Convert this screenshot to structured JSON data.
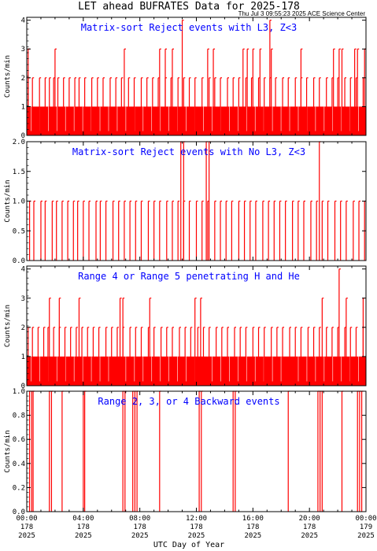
{
  "header": {
    "title": "LET ahead BUFRATES Data for 2025-178",
    "timestamp": "Thu Jul  3 09:55:23 2025 ACE Science Center"
  },
  "xaxis": {
    "label": "UTC Day of Year",
    "ticks": [
      {
        "time": "00:00",
        "doy": "178",
        "year": "2025",
        "hour": 0
      },
      {
        "time": "04:00",
        "doy": "178",
        "year": "2025",
        "hour": 4
      },
      {
        "time": "08:00",
        "doy": "178",
        "year": "2025",
        "hour": 8
      },
      {
        "time": "12:00",
        "doy": "178",
        "year": "2025",
        "hour": 12
      },
      {
        "time": "16:00",
        "doy": "178",
        "year": "2025",
        "hour": 16
      },
      {
        "time": "20:00",
        "doy": "178",
        "year": "2025",
        "hour": 20
      },
      {
        "time": "00:00",
        "doy": "179",
        "year": "2025",
        "hour": 24
      }
    ]
  },
  "colors": {
    "data": "#ff0000",
    "panel_title": "#0000ff",
    "axes": "#000000"
  },
  "chart_data": [
    {
      "type": "line",
      "title": "Matrix-sort Reject events with L3, Z<3",
      "ylabel": "Counts/min",
      "ylim": [
        0,
        4.1
      ],
      "yticks": [
        "0",
        "1",
        "2",
        "3",
        "4"
      ],
      "xlim_hours": [
        0,
        24
      ],
      "series": [
        {
          "baseline_fill": [
            0,
            1
          ],
          "spikes_2": [
            0.1,
            0.4,
            0.9,
            1.3,
            1.6,
            1.9,
            2.2,
            2.6,
            3.0,
            3.4,
            3.7,
            4.1,
            4.6,
            5.0,
            5.4,
            5.9,
            6.3,
            6.7,
            7.2,
            7.6,
            8.1,
            8.5,
            8.9,
            9.3,
            9.8,
            10.2,
            10.7,
            11.1,
            11.5,
            11.9,
            12.4,
            12.9,
            13.3,
            13.7,
            14.2,
            14.6,
            15.0,
            15.5,
            15.9,
            16.4,
            16.8,
            17.2,
            17.6,
            18.1,
            18.5,
            19.0,
            19.4,
            19.8,
            20.3,
            20.7,
            21.2,
            21.6,
            22.0,
            22.5,
            22.9,
            23.3,
            23.8
          ],
          "spikes_3": [
            0.1,
            2.0,
            6.9,
            9.4,
            9.8,
            10.3,
            12.8,
            13.2,
            15.3,
            15.6,
            16.0,
            16.5,
            17.3,
            19.4,
            21.7,
            22.1,
            22.3,
            23.2,
            23.4,
            23.9
          ],
          "spikes_4": [
            11.0,
            17.2
          ]
        }
      ]
    },
    {
      "type": "line",
      "title": "Matrix-sort Reject events with No L3, Z<3",
      "ylabel": "Counts/min",
      "ylim": [
        0,
        2.0
      ],
      "yticks": [
        "0.0",
        "0.5",
        "1.0",
        "1.5",
        "2.0"
      ],
      "xlim_hours": [
        0,
        24
      ],
      "series": [
        {
          "spikes_1": [
            0.2,
            0.5,
            1.0,
            1.3,
            1.8,
            2.1,
            2.5,
            2.9,
            3.3,
            3.6,
            4.0,
            4.4,
            4.9,
            5.2,
            5.6,
            6.1,
            6.5,
            6.9,
            7.3,
            7.7,
            8.1,
            8.6,
            9.0,
            9.4,
            9.9,
            10.3,
            10.7,
            11.1,
            11.5,
            12.0,
            12.4,
            12.8,
            13.3,
            13.7,
            14.1,
            14.5,
            15.0,
            15.4,
            15.8,
            16.2,
            16.7,
            17.1,
            17.5,
            17.9,
            18.3,
            18.8,
            19.2,
            19.6,
            20.1,
            20.5,
            20.9,
            21.3,
            21.8,
            22.2,
            22.6,
            23.1,
            23.5,
            23.9
          ],
          "spikes_2": [
            10.9,
            11.1,
            12.7,
            12.9,
            20.7
          ]
        }
      ]
    },
    {
      "type": "line",
      "title": "Range 4 or Range 5 penetrating H and He",
      "ylabel": "Counts/min",
      "ylim": [
        0,
        4.1
      ],
      "yticks": [
        "0",
        "1",
        "2",
        "3",
        "4"
      ],
      "xlim_hours": [
        0,
        24
      ],
      "series": [
        {
          "baseline_fill": [
            0,
            1
          ],
          "spikes_2": [
            0.1,
            0.4,
            0.8,
            1.2,
            1.5,
            1.9,
            2.3,
            2.7,
            3.1,
            3.5,
            3.9,
            4.3,
            4.7,
            5.1,
            5.6,
            6.0,
            6.4,
            6.8,
            7.3,
            7.7,
            8.1,
            8.6,
            9.0,
            9.5,
            9.9,
            10.3,
            10.8,
            11.2,
            11.6,
            12.1,
            12.5,
            12.9,
            13.4,
            13.8,
            14.2,
            14.7,
            15.1,
            15.5,
            16.0,
            16.4,
            16.8,
            17.3,
            17.7,
            18.1,
            18.6,
            19.0,
            19.4,
            19.9,
            20.3,
            20.7,
            21.2,
            21.6,
            22.0,
            22.5,
            22.9,
            23.3,
            23.8
          ],
          "spikes_3": [
            1.6,
            2.3,
            3.7,
            6.6,
            6.8,
            8.7,
            11.9,
            12.3,
            20.9,
            22.6,
            23.8
          ],
          "spikes_4": [
            22.1
          ]
        }
      ]
    },
    {
      "type": "line",
      "title": "Range 2, 3, or 4 Backward events",
      "ylabel": "Counts/min",
      "ylim": [
        0,
        1.0
      ],
      "yticks": [
        "0.0",
        "0.2",
        "0.4",
        "0.6",
        "0.8",
        "1.0"
      ],
      "xlim_hours": [
        0,
        24
      ],
      "series": [
        {
          "spikes_1": [
            0.2,
            0.35,
            0.45,
            1.6,
            1.75,
            2.5,
            4.0,
            4.1,
            6.8,
            6.95,
            7.5,
            7.65,
            7.8,
            9.4,
            12.2,
            12.35,
            14.6,
            14.75,
            18.5,
            20.6,
            20.75,
            20.9,
            22.3,
            23.4,
            23.55,
            23.7
          ]
        }
      ]
    }
  ]
}
